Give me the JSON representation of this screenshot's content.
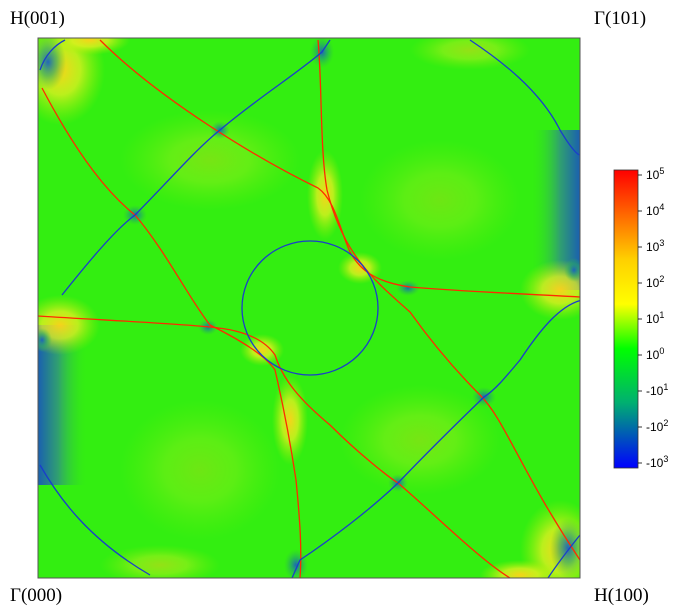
{
  "labels": {
    "top_left": "H(001)",
    "top_right": "Γ(101)",
    "bottom_left": "Γ(000)",
    "bottom_right": "H(100)"
  },
  "colors": {
    "background_field": "#33ee11",
    "red_line": "#ff2a00",
    "blue_line": "#1a3dcc",
    "frame": "#555555"
  },
  "chart_data": {
    "type": "heatmap",
    "title": "",
    "xlabel": "",
    "ylabel": "",
    "colorbar": {
      "scale": "symlog",
      "range": [
        "-10^3",
        "10^5"
      ],
      "colors": [
        "#0000ff",
        "#00ff00",
        "#ffff00",
        "#ff0000"
      ],
      "ticks": [
        {
          "base": "10",
          "exp": "5"
        },
        {
          "base": "10",
          "exp": "4"
        },
        {
          "base": "10",
          "exp": "3"
        },
        {
          "base": "10",
          "exp": "2"
        },
        {
          "base": "10",
          "exp": "1"
        },
        {
          "base": "10",
          "exp": "0"
        },
        {
          "base": "-10",
          "exp": "1"
        },
        {
          "base": "-10",
          "exp": "2"
        },
        {
          "base": "-10",
          "exp": "3"
        }
      ]
    },
    "corners": [
      "H(001)",
      "Γ(101)",
      "Γ(000)",
      "H(100)"
    ]
  }
}
